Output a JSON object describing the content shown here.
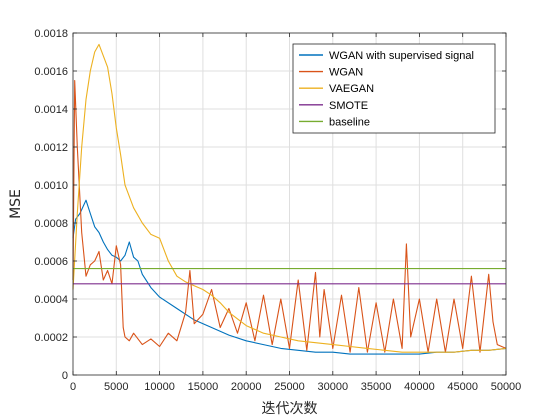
{
  "chart_data": {
    "type": "line",
    "title": "",
    "xlabel": "迭代次数",
    "ylabel": "MSE",
    "xlim": [
      0,
      50000
    ],
    "ylim": [
      0,
      0.0018
    ],
    "xticks": [
      0,
      5000,
      10000,
      15000,
      20000,
      25000,
      30000,
      35000,
      40000,
      45000,
      50000
    ],
    "xtick_labels": [
      "0",
      "5000",
      "10000",
      "15000",
      "20000",
      "25000",
      "30000",
      "35000",
      "40000",
      "45000",
      "50000"
    ],
    "yticks": [
      0,
      0.0002,
      0.0004,
      0.0006,
      0.0008,
      0.001,
      0.0012,
      0.0014,
      0.0016,
      0.0018
    ],
    "ytick_labels": [
      "0",
      "0.0002",
      "0.0004",
      "0.0006",
      "0.0008",
      "0.0010",
      "0.0012",
      "0.0014",
      "0.0016",
      "0.0018"
    ],
    "grid": true,
    "legend_position": "top-right",
    "series": [
      {
        "name": "WGAN with supervised signal",
        "color": "#0072BD",
        "x": [
          0,
          300,
          800,
          1500,
          2000,
          2500,
          3000,
          3500,
          4000,
          4500,
          5000,
          5500,
          6000,
          6500,
          7000,
          7500,
          8000,
          9000,
          10000,
          12000,
          14000,
          16000,
          18000,
          20000,
          22000,
          24000,
          26000,
          28000,
          30000,
          32000,
          34000,
          36000,
          38000,
          40000,
          42000,
          44000,
          46000,
          48000,
          50000
        ],
        "y": [
          0.00072,
          0.00082,
          0.00085,
          0.00092,
          0.00085,
          0.00078,
          0.00075,
          0.0007,
          0.00066,
          0.00063,
          0.00062,
          0.0006,
          0.00063,
          0.0007,
          0.00062,
          0.0006,
          0.00053,
          0.00046,
          0.00041,
          0.00035,
          0.00029,
          0.00025,
          0.00021,
          0.00018,
          0.00016,
          0.00014,
          0.00013,
          0.00012,
          0.00012,
          0.00011,
          0.00011,
          0.00011,
          0.00011,
          0.00011,
          0.00012,
          0.00012,
          0.00013,
          0.00013,
          0.00014
        ]
      },
      {
        "name": "WGAN",
        "color": "#D95319",
        "x": [
          0,
          200,
          500,
          1000,
          1500,
          2000,
          2500,
          3000,
          3500,
          4000,
          4500,
          5000,
          5500,
          5800,
          6000,
          6500,
          7000,
          8000,
          9000,
          10000,
          11000,
          12000,
          13000,
          13500,
          14000,
          15000,
          16000,
          17000,
          18000,
          19000,
          20000,
          21000,
          22000,
          23000,
          24000,
          25000,
          26000,
          27000,
          28000,
          28500,
          29000,
          30000,
          31000,
          32000,
          33000,
          34000,
          35000,
          36000,
          37000,
          38000,
          38500,
          39000,
          40000,
          41000,
          42000,
          43000,
          44000,
          45000,
          46000,
          47000,
          48000,
          48500,
          49000,
          50000
        ],
        "y": [
          0.0005,
          0.00155,
          0.0012,
          0.00075,
          0.00052,
          0.00058,
          0.0006,
          0.00065,
          0.0005,
          0.00055,
          0.00048,
          0.00068,
          0.00058,
          0.00025,
          0.0002,
          0.00018,
          0.00022,
          0.00016,
          0.00019,
          0.00015,
          0.00022,
          0.00018,
          0.00033,
          0.00055,
          0.00027,
          0.00032,
          0.00045,
          0.00025,
          0.00035,
          0.00022,
          0.00038,
          0.00018,
          0.00042,
          0.00016,
          0.0004,
          0.00014,
          0.0005,
          0.00013,
          0.00054,
          0.0002,
          0.00045,
          0.00014,
          0.00042,
          0.00012,
          0.00046,
          0.00012,
          0.00038,
          0.00012,
          0.0004,
          0.00014,
          0.00069,
          0.0002,
          0.0004,
          0.00012,
          0.0004,
          0.00012,
          0.0004,
          0.00014,
          0.00052,
          0.00012,
          0.00053,
          0.00028,
          0.00016,
          0.00014
        ]
      },
      {
        "name": "VAEGAN",
        "color": "#EDB120",
        "x": [
          0,
          500,
          1000,
          1500,
          2000,
          2500,
          3000,
          3500,
          4000,
          4500,
          5000,
          5500,
          6000,
          7000,
          8000,
          9000,
          10000,
          11000,
          12000,
          13000,
          14000,
          15000,
          16000,
          17000,
          18000,
          20000,
          22000,
          24000,
          26000,
          28000,
          30000,
          32000,
          34000,
          36000,
          38000,
          40000,
          42000,
          44000,
          46000,
          48000,
          50000
        ],
        "y": [
          0.00045,
          0.00085,
          0.0012,
          0.00145,
          0.0016,
          0.0017,
          0.00174,
          0.00168,
          0.00162,
          0.00148,
          0.0013,
          0.00116,
          0.001,
          0.00088,
          0.0008,
          0.00074,
          0.00072,
          0.0006,
          0.00052,
          0.00049,
          0.00047,
          0.00045,
          0.00042,
          0.00038,
          0.00033,
          0.00026,
          0.00022,
          0.0002,
          0.00018,
          0.00017,
          0.00016,
          0.00015,
          0.00014,
          0.00013,
          0.00012,
          0.00012,
          0.00012,
          0.00012,
          0.00013,
          0.00013,
          0.00014
        ]
      },
      {
        "name": "SMOTE",
        "color": "#7E2F8E",
        "x": [
          0,
          50000
        ],
        "y": [
          0.00048,
          0.00048
        ]
      },
      {
        "name": "baseline",
        "color": "#77AC30",
        "x": [
          0,
          50000
        ],
        "y": [
          0.00056,
          0.00056
        ]
      }
    ]
  }
}
